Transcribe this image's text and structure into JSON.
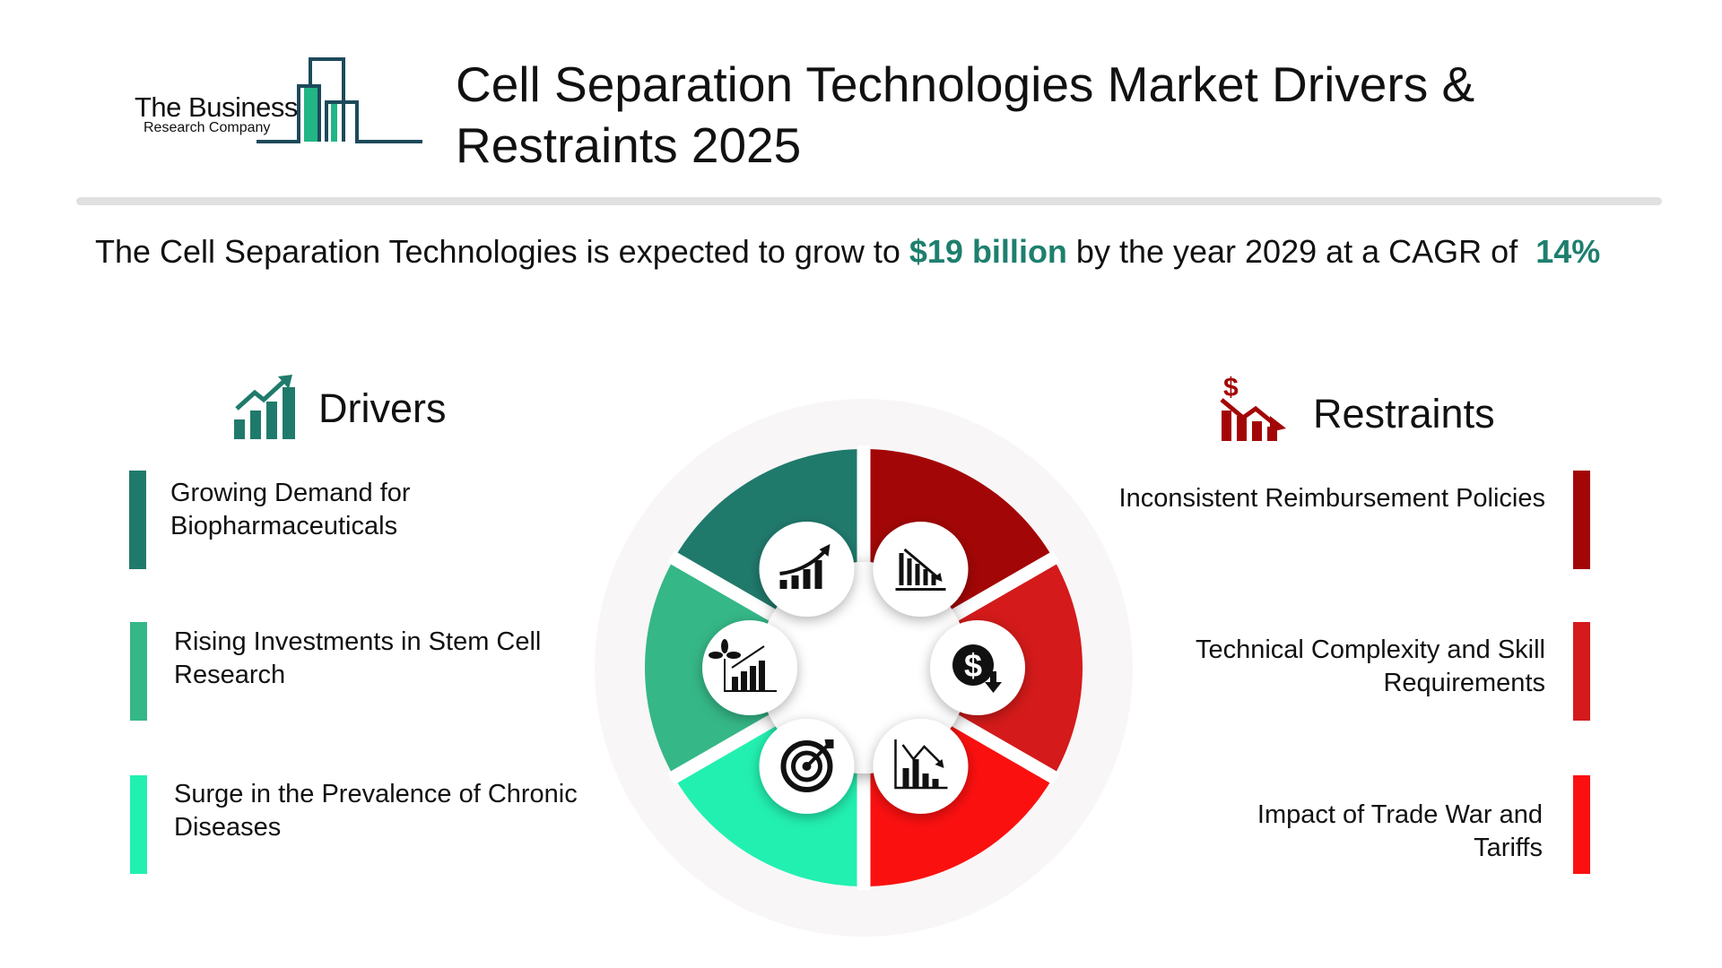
{
  "logo": {
    "line1": "The Business",
    "line2": "Research Company",
    "colors": {
      "outline": "#1d4a5a",
      "fill": "#22b585"
    }
  },
  "title": "Cell Separation Technologies Market Drivers & Restraints 2025",
  "subtitle": {
    "prefix": "The Cell Separation Technologies is expected to grow to ",
    "value": "$19 billion",
    "middle": " by the year 2029 at a CAGR of ",
    "cagr": "14%",
    "accent": "#1e7f6e"
  },
  "drivers": {
    "heading": "Drivers",
    "icon": "growth-bar-chart-icon",
    "items": [
      {
        "label": "Growing Demand for Biopharmaceuticals",
        "color": "#207a6c"
      },
      {
        "label": "Rising Investments in Stem Cell Research",
        "color": "#35b787"
      },
      {
        "label": "Surge in the Prevalence of Chronic Diseases",
        "color": "#22f0b0"
      }
    ]
  },
  "restraints": {
    "heading": "Restraints",
    "icon": "dollar-decline-chart-icon",
    "items": [
      {
        "label": "Inconsistent Reimbursement Policies",
        "color": "#a30606"
      },
      {
        "label": "Technical Complexity and Skill Requirements",
        "color": "#d41a1a"
      },
      {
        "label": "Impact of Trade War and Tariffs",
        "color": "#fb1010"
      }
    ]
  },
  "wheel": {
    "ring_color": "#f8f6f7",
    "icons": [
      "growth-chart-icon",
      "decline-bar-chart-icon",
      "plant-growth-chart-icon",
      "dollar-down-icon",
      "target-icon",
      "decline-line-chart-icon"
    ]
  }
}
